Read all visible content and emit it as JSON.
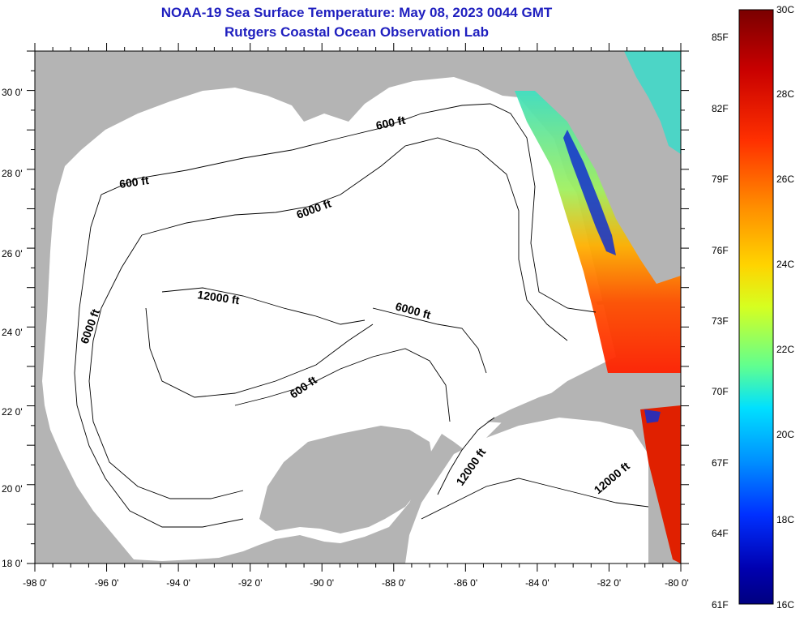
{
  "title": "NOAA-19 Sea Surface Temperature:  May 08, 2023 0044 GMT",
  "subtitle": "Rutgers Coastal Ocean Observation Lab",
  "map": {
    "lon_ticks": [
      "-98 0'",
      "-96 0'",
      "-94 0'",
      "-92 0'",
      "-90 0'",
      "-88 0'",
      "-86 0'",
      "-84 0'",
      "-82 0'",
      "-80 0'"
    ],
    "lat_ticks": [
      "30 0'",
      "28 0'",
      "26 0'",
      "24 0'",
      "22 0'",
      "20 0'",
      "18 0'"
    ],
    "contour_labels": [
      "600 ft",
      "600 ft",
      "6000 ft",
      "12000 ft",
      "6000 ft",
      "6000 ft",
      "600 ft",
      "12000 ft",
      "12000 ft"
    ],
    "land_color": "#b4b4b4",
    "water_color": "#ffffff"
  },
  "colorbar": {
    "fahrenheit_labels": [
      "85F",
      "82F",
      "79F",
      "76F",
      "73F",
      "70F",
      "67F",
      "64F",
      "61F"
    ],
    "celsius_labels": [
      "30C",
      "28C",
      "26C",
      "24C",
      "22C",
      "20C",
      "18C",
      "16C"
    ],
    "colors": [
      "#7a0000",
      "#c80000",
      "#ff3000",
      "#ff8c00",
      "#ffd400",
      "#d6ff20",
      "#60ff90",
      "#00e0ff",
      "#0090ff",
      "#0030ff",
      "#0000b0",
      "#000080"
    ]
  }
}
